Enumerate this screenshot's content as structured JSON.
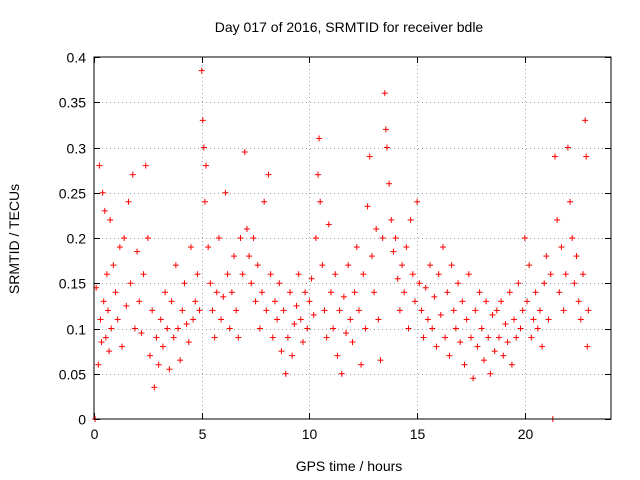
{
  "chart_data": {
    "type": "scatter",
    "title": "Day 017 of 2016, SRMTID for receiver bdle",
    "xlabel": "GPS time / hours",
    "ylabel": "SRMTID / TECUs",
    "xlim": [
      0,
      24
    ],
    "ylim": [
      0,
      0.4
    ],
    "xticks": [
      0,
      5,
      10,
      15,
      20
    ],
    "xtick_labels": [
      "0",
      "5",
      "10",
      "15",
      "20"
    ],
    "yticks": [
      0,
      0.05,
      0.1,
      0.15,
      0.2,
      0.25,
      0.3,
      0.35,
      0.4
    ],
    "ytick_labels": [
      "0",
      "0.05",
      "0.1",
      "0.15",
      "0.2",
      "0.25",
      "0.3",
      "0.35",
      "0.4"
    ],
    "grid": true,
    "marker": "+",
    "marker_color": "#ff0000",
    "series": [
      {
        "name": "SRMTID",
        "points": [
          [
            0.05,
            0.0
          ],
          [
            0.1,
            0.145
          ],
          [
            0.2,
            0.06
          ],
          [
            0.25,
            0.28
          ],
          [
            0.3,
            0.11
          ],
          [
            0.35,
            0.085
          ],
          [
            0.4,
            0.25
          ],
          [
            0.45,
            0.13
          ],
          [
            0.5,
            0.23
          ],
          [
            0.55,
            0.09
          ],
          [
            0.6,
            0.16
          ],
          [
            0.65,
            0.12
          ],
          [
            0.7,
            0.075
          ],
          [
            0.75,
            0.22
          ],
          [
            0.8,
            0.1
          ],
          [
            0.9,
            0.17
          ],
          [
            1.0,
            0.14
          ],
          [
            1.1,
            0.11
          ],
          [
            1.2,
            0.19
          ],
          [
            1.3,
            0.08
          ],
          [
            1.4,
            0.2
          ],
          [
            1.5,
            0.125
          ],
          [
            1.6,
            0.24
          ],
          [
            1.7,
            0.15
          ],
          [
            1.8,
            0.27
          ],
          [
            1.9,
            0.1
          ],
          [
            2.0,
            0.185
          ],
          [
            2.1,
            0.13
          ],
          [
            2.2,
            0.095
          ],
          [
            2.3,
            0.16
          ],
          [
            2.4,
            0.28
          ],
          [
            2.5,
            0.2
          ],
          [
            2.6,
            0.07
          ],
          [
            2.7,
            0.12
          ],
          [
            2.8,
            0.035
          ],
          [
            2.9,
            0.09
          ],
          [
            3.0,
            0.06
          ],
          [
            3.1,
            0.11
          ],
          [
            3.2,
            0.08
          ],
          [
            3.3,
            0.14
          ],
          [
            3.4,
            0.1
          ],
          [
            3.5,
            0.055
          ],
          [
            3.6,
            0.13
          ],
          [
            3.7,
            0.09
          ],
          [
            3.8,
            0.17
          ],
          [
            3.9,
            0.1
          ],
          [
            4.0,
            0.065
          ],
          [
            4.1,
            0.12
          ],
          [
            4.2,
            0.15
          ],
          [
            4.3,
            0.105
          ],
          [
            4.4,
            0.085
          ],
          [
            4.5,
            0.19
          ],
          [
            4.6,
            0.11
          ],
          [
            4.7,
            0.13
          ],
          [
            4.8,
            0.16
          ],
          [
            4.9,
            0.12
          ],
          [
            5.0,
            0.385
          ],
          [
            5.05,
            0.33
          ],
          [
            5.1,
            0.3
          ],
          [
            5.15,
            0.24
          ],
          [
            5.2,
            0.28
          ],
          [
            5.3,
            0.19
          ],
          [
            5.4,
            0.15
          ],
          [
            5.5,
            0.12
          ],
          [
            5.6,
            0.09
          ],
          [
            5.7,
            0.14
          ],
          [
            5.8,
            0.2
          ],
          [
            5.9,
            0.11
          ],
          [
            6.0,
            0.135
          ],
          [
            6.1,
            0.25
          ],
          [
            6.2,
            0.16
          ],
          [
            6.3,
            0.1
          ],
          [
            6.4,
            0.14
          ],
          [
            6.5,
            0.18
          ],
          [
            6.6,
            0.12
          ],
          [
            6.7,
            0.09
          ],
          [
            6.8,
            0.2
          ],
          [
            6.9,
            0.16
          ],
          [
            7.0,
            0.295
          ],
          [
            7.1,
            0.21
          ],
          [
            7.2,
            0.18
          ],
          [
            7.3,
            0.15
          ],
          [
            7.4,
            0.2
          ],
          [
            7.5,
            0.13
          ],
          [
            7.6,
            0.17
          ],
          [
            7.7,
            0.1
          ],
          [
            7.8,
            0.14
          ],
          [
            7.9,
            0.24
          ],
          [
            8.0,
            0.12
          ],
          [
            8.1,
            0.27
          ],
          [
            8.2,
            0.16
          ],
          [
            8.3,
            0.09
          ],
          [
            8.4,
            0.13
          ],
          [
            8.5,
            0.11
          ],
          [
            8.6,
            0.15
          ],
          [
            8.7,
            0.075
          ],
          [
            8.8,
            0.12
          ],
          [
            8.9,
            0.05
          ],
          [
            9.0,
            0.09
          ],
          [
            9.1,
            0.14
          ],
          [
            9.2,
            0.07
          ],
          [
            9.3,
            0.105
          ],
          [
            9.4,
            0.125
          ],
          [
            9.5,
            0.16
          ],
          [
            9.6,
            0.11
          ],
          [
            9.7,
            0.085
          ],
          [
            9.8,
            0.14
          ],
          [
            9.9,
            0.1
          ],
          [
            10.0,
            0.13
          ],
          [
            10.1,
            0.155
          ],
          [
            10.2,
            0.115
          ],
          [
            10.3,
            0.2
          ],
          [
            10.4,
            0.27
          ],
          [
            10.45,
            0.31
          ],
          [
            10.5,
            0.24
          ],
          [
            10.6,
            0.17
          ],
          [
            10.7,
            0.12
          ],
          [
            10.8,
            0.09
          ],
          [
            10.9,
            0.215
          ],
          [
            11.0,
            0.14
          ],
          [
            11.1,
            0.1
          ],
          [
            11.2,
            0.16
          ],
          [
            11.3,
            0.07
          ],
          [
            11.4,
            0.12
          ],
          [
            11.5,
            0.05
          ],
          [
            11.6,
            0.135
          ],
          [
            11.7,
            0.095
          ],
          [
            11.8,
            0.17
          ],
          [
            11.9,
            0.11
          ],
          [
            12.0,
            0.085
          ],
          [
            12.1,
            0.14
          ],
          [
            12.2,
            0.19
          ],
          [
            12.3,
            0.12
          ],
          [
            12.4,
            0.06
          ],
          [
            12.5,
            0.16
          ],
          [
            12.6,
            0.1
          ],
          [
            12.7,
            0.235
          ],
          [
            12.8,
            0.29
          ],
          [
            12.9,
            0.18
          ],
          [
            13.0,
            0.14
          ],
          [
            13.1,
            0.21
          ],
          [
            13.2,
            0.11
          ],
          [
            13.3,
            0.065
          ],
          [
            13.4,
            0.2
          ],
          [
            13.5,
            0.36
          ],
          [
            13.55,
            0.32
          ],
          [
            13.6,
            0.3
          ],
          [
            13.7,
            0.26
          ],
          [
            13.8,
            0.22
          ],
          [
            13.9,
            0.185
          ],
          [
            14.0,
            0.2
          ],
          [
            14.1,
            0.155
          ],
          [
            14.2,
            0.12
          ],
          [
            14.3,
            0.17
          ],
          [
            14.4,
            0.14
          ],
          [
            14.5,
            0.19
          ],
          [
            14.6,
            0.1
          ],
          [
            14.7,
            0.22
          ],
          [
            14.8,
            0.16
          ],
          [
            14.9,
            0.13
          ],
          [
            15.0,
            0.24
          ],
          [
            15.1,
            0.15
          ],
          [
            15.2,
            0.12
          ],
          [
            15.3,
            0.09
          ],
          [
            15.4,
            0.145
          ],
          [
            15.5,
            0.11
          ],
          [
            15.6,
            0.17
          ],
          [
            15.7,
            0.1
          ],
          [
            15.8,
            0.135
          ],
          [
            15.9,
            0.08
          ],
          [
            16.0,
            0.16
          ],
          [
            16.1,
            0.115
          ],
          [
            16.2,
            0.19
          ],
          [
            16.3,
            0.09
          ],
          [
            16.4,
            0.14
          ],
          [
            16.5,
            0.07
          ],
          [
            16.6,
            0.17
          ],
          [
            16.7,
            0.12
          ],
          [
            16.8,
            0.1
          ],
          [
            16.9,
            0.15
          ],
          [
            17.0,
            0.085
          ],
          [
            17.1,
            0.13
          ],
          [
            17.2,
            0.06
          ],
          [
            17.3,
            0.11
          ],
          [
            17.4,
            0.16
          ],
          [
            17.5,
            0.09
          ],
          [
            17.6,
            0.045
          ],
          [
            17.7,
            0.12
          ],
          [
            17.8,
            0.08
          ],
          [
            17.9,
            0.14
          ],
          [
            18.0,
            0.1
          ],
          [
            18.1,
            0.065
          ],
          [
            18.2,
            0.13
          ],
          [
            18.3,
            0.09
          ],
          [
            18.4,
            0.05
          ],
          [
            18.5,
            0.115
          ],
          [
            18.6,
            0.075
          ],
          [
            18.7,
            0.12
          ],
          [
            18.8,
            0.09
          ],
          [
            18.9,
            0.13
          ],
          [
            19.0,
            0.07
          ],
          [
            19.1,
            0.105
          ],
          [
            19.2,
            0.085
          ],
          [
            19.3,
            0.14
          ],
          [
            19.4,
            0.06
          ],
          [
            19.5,
            0.11
          ],
          [
            19.6,
            0.09
          ],
          [
            19.7,
            0.15
          ],
          [
            19.8,
            0.1
          ],
          [
            19.9,
            0.12
          ],
          [
            20.0,
            0.2
          ],
          [
            20.1,
            0.13
          ],
          [
            20.2,
            0.17
          ],
          [
            20.3,
            0.09
          ],
          [
            20.4,
            0.11
          ],
          [
            20.5,
            0.14
          ],
          [
            20.6,
            0.1
          ],
          [
            20.7,
            0.12
          ],
          [
            20.8,
            0.08
          ],
          [
            20.9,
            0.15
          ],
          [
            21.0,
            0.18
          ],
          [
            21.1,
            0.11
          ],
          [
            21.2,
            0.16
          ],
          [
            21.3,
            0.0
          ],
          [
            21.4,
            0.29
          ],
          [
            21.5,
            0.22
          ],
          [
            21.6,
            0.14
          ],
          [
            21.7,
            0.19
          ],
          [
            21.8,
            0.12
          ],
          [
            21.9,
            0.16
          ],
          [
            22.0,
            0.3
          ],
          [
            22.1,
            0.24
          ],
          [
            22.2,
            0.2
          ],
          [
            22.3,
            0.15
          ],
          [
            22.4,
            0.18
          ],
          [
            22.5,
            0.13
          ],
          [
            22.6,
            0.11
          ],
          [
            22.7,
            0.16
          ],
          [
            22.8,
            0.33
          ],
          [
            22.85,
            0.29
          ],
          [
            22.9,
            0.08
          ],
          [
            22.95,
            0.12
          ]
        ]
      }
    ]
  }
}
